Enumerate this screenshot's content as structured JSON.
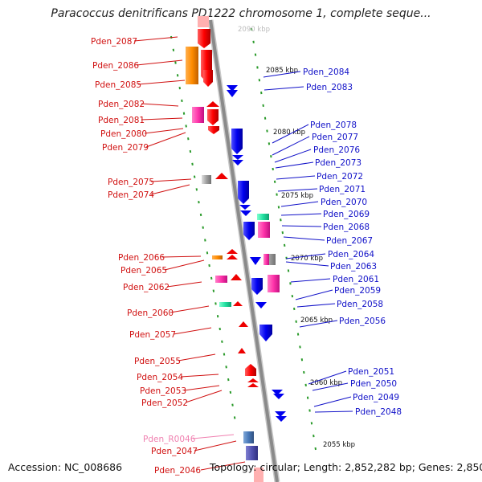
{
  "title": "Paracoccus denitrificans PD1222 chromosome 1, complete seque...",
  "footer": {
    "accession": "Accession: NC_008686",
    "topology": "Topology: circular; Length: 2,852,282 bp; Genes: 2,850"
  },
  "scale": {
    "top_label": "2090 kbp",
    "labels": [
      "2085 kbp",
      "2080 kbp",
      "2075 kbp",
      "2070 kbp",
      "2065 kbp",
      "2060 kbp",
      "2055 kbp"
    ]
  },
  "genes_left": [
    "Pden_2087",
    "Pden_2086",
    "Pden_2085",
    "Pden_2082",
    "Pden_2081",
    "Pden_2080",
    "Pden_2079",
    "Pden_2075",
    "Pden_2074",
    "Pden_2066",
    "Pden_2065",
    "Pden_2062",
    "Pden_2060",
    "Pden_2057",
    "Pden_2055",
    "Pden_2054",
    "Pden_2053",
    "Pden_2052",
    "Pden_R0046",
    "Pden_2047",
    "Pden_2046"
  ],
  "genes_right": [
    "Pden_2084",
    "Pden_2083",
    "Pden_2078",
    "Pden_2077",
    "Pden_2076",
    "Pden_2073",
    "Pden_2072",
    "Pden_2071",
    "Pden_2070",
    "Pden_2069",
    "Pden_2068",
    "Pden_2067",
    "Pden_2064",
    "Pden_2063",
    "Pden_2061",
    "Pden_2059",
    "Pden_2058",
    "Pden_2056",
    "Pden_2051",
    "Pden_2050",
    "Pden_2049",
    "Pden_2048"
  ],
  "colors": {
    "forward_strand": "#ff0000",
    "reverse_strand": "#0000ee",
    "highlight_pink": "#ff33aa",
    "highlight_orange": "#ff8c00",
    "highlight_teal": "#20e0a0",
    "highlight_gray": "#a0a0a0",
    "rna": "#f080b0",
    "backbone": "#888888"
  }
}
